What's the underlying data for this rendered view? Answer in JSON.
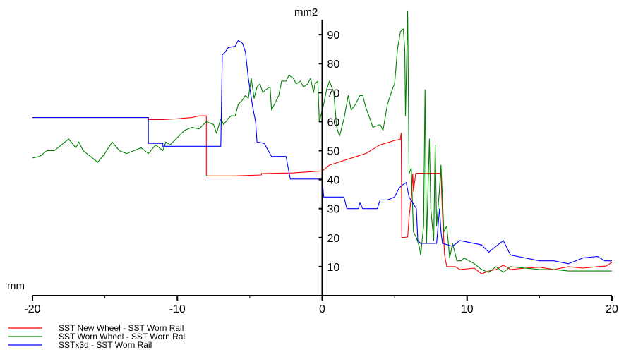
{
  "chart_data": {
    "type": "line",
    "title": "",
    "xlabel": "mm",
    "ylabel": "mm2",
    "xlim": [
      -20,
      20
    ],
    "ylim": [
      0,
      97
    ],
    "xticks": [
      -20,
      -10,
      0,
      10,
      20
    ],
    "xtick_labels": [
      "-20",
      "-10",
      "0",
      "10",
      "20"
    ],
    "yticks": [
      10,
      20,
      30,
      40,
      50,
      60,
      70,
      80,
      90
    ],
    "ytick_labels": [
      "10",
      "20",
      "30",
      "40",
      "50",
      "60",
      "70",
      "80",
      "90"
    ],
    "grid": false,
    "legend_position": "bottom-left",
    "series": [
      {
        "name": "SST New Wheel - SST Worn Rail",
        "color": "#ff0000",
        "points": [
          [
            -20,
            61.4
          ],
          [
            -12,
            61.4
          ],
          [
            -12,
            60.7
          ],
          [
            -11,
            60.7
          ],
          [
            -10,
            61
          ],
          [
            -9,
            61.4
          ],
          [
            -8.5,
            62
          ],
          [
            -8,
            62
          ],
          [
            -8,
            41.3
          ],
          [
            -6,
            41.3
          ],
          [
            -4.2,
            41.6
          ],
          [
            -4.2,
            42.1
          ],
          [
            -2,
            42.3
          ],
          [
            0,
            43
          ],
          [
            0.5,
            45
          ],
          [
            3,
            49
          ],
          [
            4,
            52
          ],
          [
            5,
            53.5
          ],
          [
            5.4,
            54
          ],
          [
            5.45,
            56
          ],
          [
            5.5,
            20
          ],
          [
            5.9,
            20.2
          ],
          [
            6.0,
            27
          ],
          [
            6.15,
            34
          ],
          [
            6.25,
            42
          ],
          [
            6.3,
            36
          ],
          [
            6.45,
            42
          ],
          [
            6.5,
            42.2
          ],
          [
            8.2,
            42.2
          ],
          [
            8.3,
            28
          ],
          [
            8.45,
            14
          ],
          [
            8.6,
            10
          ],
          [
            9.2,
            10
          ],
          [
            9.5,
            9
          ],
          [
            10.5,
            9.5
          ],
          [
            11,
            7.5
          ],
          [
            11.5,
            8.5
          ],
          [
            12,
            9
          ],
          [
            12.5,
            10.5
          ],
          [
            13,
            9
          ],
          [
            14,
            9.5
          ],
          [
            15,
            9.8
          ],
          [
            16,
            9
          ],
          [
            17,
            10
          ],
          [
            18,
            9.5
          ],
          [
            19,
            10
          ],
          [
            19.6,
            10.2
          ],
          [
            20,
            11.5
          ]
        ]
      },
      {
        "name": "SST Worn Wheel - SST Worn Rail",
        "color": "#008000",
        "points": [
          [
            -20,
            47.5
          ],
          [
            -19.5,
            48
          ],
          [
            -19,
            50
          ],
          [
            -18.5,
            50
          ],
          [
            -18,
            52
          ],
          [
            -17.5,
            54
          ],
          [
            -17,
            51
          ],
          [
            -16.8,
            53
          ],
          [
            -16.5,
            50
          ],
          [
            -16,
            48
          ],
          [
            -15.5,
            46
          ],
          [
            -15,
            49
          ],
          [
            -14.5,
            53
          ],
          [
            -14,
            50
          ],
          [
            -13.5,
            49
          ],
          [
            -13,
            50
          ],
          [
            -12.5,
            51
          ],
          [
            -12,
            49
          ],
          [
            -11.5,
            52
          ],
          [
            -11,
            50
          ],
          [
            -10.8,
            53
          ],
          [
            -10.5,
            52
          ],
          [
            -10,
            54.5
          ],
          [
            -9.5,
            57
          ],
          [
            -9,
            58
          ],
          [
            -8.5,
            57.5
          ],
          [
            -8,
            60
          ],
          [
            -7.5,
            59
          ],
          [
            -7.3,
            56
          ],
          [
            -7,
            61
          ],
          [
            -6.8,
            59
          ],
          [
            -6.5,
            61
          ],
          [
            -6.3,
            62
          ],
          [
            -6,
            62
          ],
          [
            -5.8,
            66
          ],
          [
            -5.5,
            67.5
          ],
          [
            -5.3,
            69
          ],
          [
            -5.1,
            68
          ],
          [
            -4.9,
            75
          ],
          [
            -4.7,
            68
          ],
          [
            -4.5,
            72
          ],
          [
            -4.3,
            73
          ],
          [
            -4.1,
            70
          ],
          [
            -3.9,
            71
          ],
          [
            -3.6,
            72
          ],
          [
            -3.5,
            64
          ],
          [
            -3.2,
            67
          ],
          [
            -3,
            69
          ],
          [
            -2.8,
            74
          ],
          [
            -2.5,
            74
          ],
          [
            -2.3,
            76
          ],
          [
            -2,
            75
          ],
          [
            -1.8,
            73
          ],
          [
            -1.5,
            74
          ],
          [
            -1.3,
            72
          ],
          [
            -1,
            73
          ],
          [
            -0.8,
            75
          ],
          [
            -0.6,
            70
          ],
          [
            -0.5,
            73
          ],
          [
            -0.3,
            74
          ],
          [
            -0.2,
            60
          ],
          [
            0.1,
            66
          ],
          [
            0.3,
            71
          ],
          [
            0.5,
            74
          ],
          [
            0.8,
            70
          ],
          [
            1,
            58
          ],
          [
            1.2,
            55
          ],
          [
            1.5,
            61
          ],
          [
            1.8,
            69
          ],
          [
            2,
            64
          ],
          [
            2.3,
            66
          ],
          [
            2.6,
            69
          ],
          [
            2.8,
            69
          ],
          [
            3,
            65
          ],
          [
            3.3,
            61
          ],
          [
            3.5,
            58
          ],
          [
            4,
            59
          ],
          [
            4.2,
            57
          ],
          [
            4.5,
            66
          ],
          [
            4.7,
            69
          ],
          [
            4.9,
            72
          ],
          [
            5,
            73
          ],
          [
            5.2,
            85
          ],
          [
            5.4,
            91
          ],
          [
            5.6,
            92
          ],
          [
            5.7,
            85
          ],
          [
            5.75,
            62
          ],
          [
            5.9,
            98
          ],
          [
            6.0,
            42
          ],
          [
            6.15,
            44
          ],
          [
            6.3,
            22
          ],
          [
            6.5,
            20
          ],
          [
            6.7,
            17
          ],
          [
            6.8,
            14
          ],
          [
            6.9,
            19
          ],
          [
            7,
            24
          ],
          [
            7.1,
            71
          ],
          [
            7.2,
            18
          ],
          [
            7.4,
            54
          ],
          [
            7.5,
            30
          ],
          [
            7.7,
            19
          ],
          [
            7.8,
            52
          ],
          [
            7.9,
            24
          ],
          [
            8.1,
            37
          ],
          [
            8.2,
            45
          ],
          [
            8.4,
            22
          ],
          [
            8.6,
            24
          ],
          [
            8.8,
            13
          ],
          [
            9,
            18
          ],
          [
            9.3,
            12
          ],
          [
            9.6,
            12
          ],
          [
            9.8,
            13
          ],
          [
            10.5,
            11
          ],
          [
            11,
            9
          ],
          [
            11.5,
            8
          ],
          [
            12,
            10
          ],
          [
            12.5,
            8
          ],
          [
            13,
            10
          ],
          [
            14,
            9.5
          ],
          [
            15,
            9
          ],
          [
            16,
            9
          ],
          [
            17,
            8.5
          ],
          [
            18,
            8.5
          ],
          [
            19,
            8.5
          ],
          [
            20,
            8.5
          ]
        ]
      },
      {
        "name": "SSTx3d - SST Worn Rail",
        "color": "#0000ff",
        "points": [
          [
            -20,
            61.4
          ],
          [
            -12,
            61.4
          ],
          [
            -12,
            52.5
          ],
          [
            -11,
            52.5
          ],
          [
            -11,
            51.5
          ],
          [
            -7,
            51.5
          ],
          [
            -6.9,
            83
          ],
          [
            -6.7,
            84
          ],
          [
            -6.5,
            85.5
          ],
          [
            -6,
            86
          ],
          [
            -5.8,
            88
          ],
          [
            -5.5,
            87
          ],
          [
            -5.3,
            84
          ],
          [
            -5.1,
            75
          ],
          [
            -4.8,
            65
          ],
          [
            -4.6,
            60
          ],
          [
            -4.5,
            53
          ],
          [
            -4,
            52.5
          ],
          [
            -3.5,
            48
          ],
          [
            -2.5,
            48
          ],
          [
            -2.2,
            40.2
          ],
          [
            0,
            40.2
          ],
          [
            0.1,
            34
          ],
          [
            1.5,
            34
          ],
          [
            1.7,
            30
          ],
          [
            2.5,
            30
          ],
          [
            2.6,
            32
          ],
          [
            2.8,
            30
          ],
          [
            3.8,
            30
          ],
          [
            4,
            33
          ],
          [
            4.5,
            33
          ],
          [
            5,
            34
          ],
          [
            5.3,
            37
          ],
          [
            5.5,
            38
          ],
          [
            5.8,
            39
          ],
          [
            6,
            34
          ],
          [
            6.5,
            30
          ],
          [
            6.6,
            19
          ],
          [
            6.8,
            18
          ],
          [
            7.9,
            18
          ],
          [
            8.1,
            30
          ],
          [
            8.2,
            22
          ],
          [
            8.3,
            18
          ],
          [
            9,
            17
          ],
          [
            9.5,
            19
          ],
          [
            11,
            17.5
          ],
          [
            11.5,
            15
          ],
          [
            12,
            17
          ],
          [
            12.5,
            19
          ],
          [
            12.8,
            16
          ],
          [
            13,
            14
          ],
          [
            14,
            13
          ],
          [
            15,
            12
          ],
          [
            16,
            12
          ],
          [
            17,
            11
          ],
          [
            17.5,
            12
          ],
          [
            18,
            13
          ],
          [
            19,
            13.5
          ],
          [
            19.5,
            12
          ],
          [
            20,
            12
          ]
        ]
      }
    ]
  }
}
